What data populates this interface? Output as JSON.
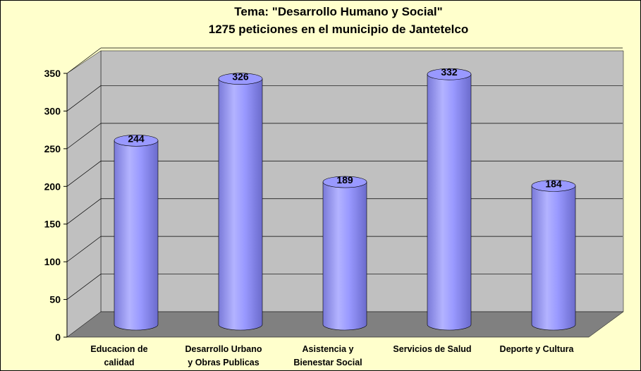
{
  "chart_data": {
    "type": "bar",
    "title": "Tema: \"Desarrollo Humano y Social\"",
    "subtitle": "1275 peticiones en el municipio de Jantetelco",
    "categories": [
      "Educacion de calidad",
      "Desarrollo Urbano y Obras Publicas",
      "Asistencia y Bienestar Social",
      "Servicios de Salud",
      "Deporte y Cultura"
    ],
    "values": [
      244,
      326,
      189,
      332,
      184
    ],
    "color": "#9999ff",
    "ylim": [
      0,
      350
    ],
    "yticks": [
      0,
      50,
      100,
      150,
      200,
      250,
      300,
      350
    ],
    "grid": true
  }
}
